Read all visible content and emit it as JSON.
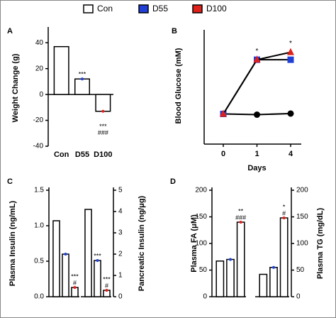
{
  "legend": [
    {
      "name": "Con",
      "color": "#ffffff"
    },
    {
      "name": "D55",
      "color": "#1f3fd6"
    },
    {
      "name": "D100",
      "color": "#e0201b"
    }
  ],
  "chart_data": [
    {
      "type": "bar",
      "panel": "A",
      "ylabel": "Weight Change (g)",
      "categories": [
        "Con",
        "D55",
        "D100"
      ],
      "values": [
        37,
        12,
        -13
      ],
      "bar_color": "#ffffff",
      "ylim": [
        -40,
        50
      ],
      "yticks": [
        -40,
        -20,
        0,
        20,
        40
      ],
      "axis_side": "left",
      "annotations": [
        [],
        [
          "***"
        ],
        [
          "***",
          "###"
        ]
      ]
    },
    {
      "type": "line",
      "panel": "B",
      "ylabel": "Blood Glucose (mM)",
      "xlabel": "Days",
      "categories": [
        "0",
        "1",
        "4"
      ],
      "ylim": [
        0,
        30
      ],
      "series": [
        {
          "color": "#000000",
          "marker": "circle",
          "values": [
            7.5,
            7.3,
            7.6
          ]
        },
        {
          "color": "#1f3fd6",
          "marker": "square",
          "values": [
            7.5,
            22,
            22
          ]
        },
        {
          "color": "#e0201b",
          "marker": "triangle",
          "values": [
            7.5,
            22,
            24
          ]
        }
      ],
      "annotations": [
        [],
        [
          "*"
        ],
        [
          "*"
        ]
      ]
    },
    {
      "type": "bar",
      "panel": "C",
      "ylabel": "Plasma Insulin (ng/mL)",
      "values": [
        1.07,
        0.6,
        0.13
      ],
      "bar_color": "#ffffff",
      "ylim": [
        0,
        1.5
      ],
      "yticks": [
        {
          "value": 0,
          "label": "0.0"
        },
        0.5,
        {
          "value": 1,
          "label": "1.0"
        },
        1.5
      ],
      "axis_side": "left",
      "annotations": [
        [],
        [],
        [
          "***",
          "#"
        ]
      ]
    },
    {
      "type": "bar",
      "ylabel": "Pancreatic Insulin (ng/μg)",
      "values": [
        4.1,
        1.7,
        0.3
      ],
      "bar_color": "#ffffff",
      "ylim": [
        0,
        5
      ],
      "yticks": [
        0,
        1,
        2,
        3,
        4,
        5
      ],
      "axis_side": "right",
      "annotations": [
        [],
        [
          "***"
        ],
        [
          "***",
          "#"
        ]
      ]
    },
    {
      "type": "bar",
      "panel": "D",
      "ylabel": "Plasma  FA  (μM)",
      "values": [
        67,
        70,
        140
      ],
      "bar_color": "#ffffff",
      "ylim": [
        0,
        200
      ],
      "yticks": [
        0,
        50,
        100,
        150,
        200
      ],
      "axis_side": "left",
      "annotations": [
        [],
        [],
        [
          "**",
          "###"
        ]
      ]
    },
    {
      "type": "bar",
      "ylabel": "Plasma TG (mg/dL)",
      "values": [
        42,
        55,
        148
      ],
      "bar_color": "#ffffff",
      "ylim": [
        0,
        200
      ],
      "yticks": [
        0,
        50,
        100,
        150,
        200
      ],
      "axis_side": "right",
      "annotations": [
        [],
        [],
        [
          "*",
          "#"
        ]
      ]
    }
  ]
}
